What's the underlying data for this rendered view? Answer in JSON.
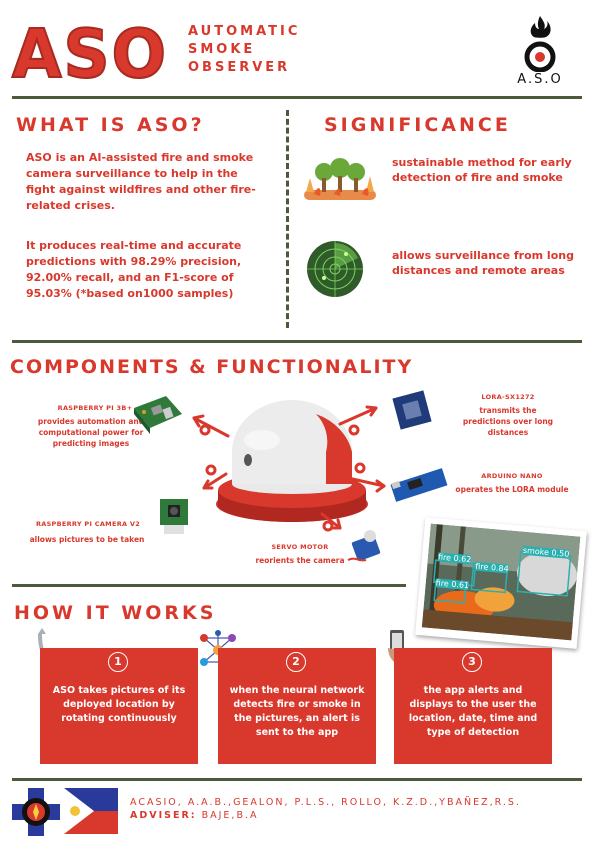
{
  "header": {
    "logo": "ASO",
    "subtitle_lines": [
      "AUTOMATIC",
      "SMOKE",
      "OBSERVER"
    ],
    "emblem_label": "A.S.O"
  },
  "what_is": {
    "title": "WHAT IS ASO?",
    "para1": "ASO is an AI-assisted fire and smoke camera surveillance to help in the fight against wildfires and other fire-related crises.",
    "para2": "It produces real-time and accurate predictions with 98.29% precision, 92.00% recall, and an F1-score of 95.03% (*based on1000 samples)"
  },
  "significance": {
    "title": "SIGNIFICANCE",
    "item1": "sustainable method for early detection of fire and smoke",
    "item2": "allows surveillance from long distances and remote areas"
  },
  "components": {
    "title": "COMPONENTS & FUNCTIONALITY",
    "rpi": {
      "name": "RASPBERRY PI 3B+",
      "desc": "provides automation and computational power for predicting images"
    },
    "camera": {
      "name": "RASPBERRY PI CAMERA V2",
      "desc": "allows pictures to be taken"
    },
    "servo": {
      "name": "SERVO MOTOR",
      "desc": "reorients the camera"
    },
    "lora": {
      "name": "LORA-SX1272",
      "desc": "transmits the predictions over long distances"
    },
    "arduino": {
      "name": "ARDUINO NANO",
      "desc": "operates the LORA module"
    }
  },
  "detection_photo": {
    "labels": [
      "fire 0.62",
      "fire 0.84",
      "fire 0.61",
      "smoke 0.50"
    ]
  },
  "how_it_works": {
    "title": "HOW IT WORKS",
    "steps": [
      {
        "num": "1",
        "text": "ASO takes pictures of its deployed location by rotating continuously"
      },
      {
        "num": "2",
        "text": "when the neural network detects fire or smoke in the pictures, an alert is sent to the app"
      },
      {
        "num": "3",
        "text": "the app alerts and displays to the user the location, date, time and type of detection"
      }
    ]
  },
  "footer": {
    "authors": "ACASIO, A.A.B.,GEALON, P.L.S., ROLLO, K.Z.D.,YBAÑEZ,R.S.",
    "adviser_label": "ADVISER:",
    "adviser": "BAJE,B.A"
  },
  "colors": {
    "accent": "#d9382c",
    "divider": "#4a5a3a"
  }
}
